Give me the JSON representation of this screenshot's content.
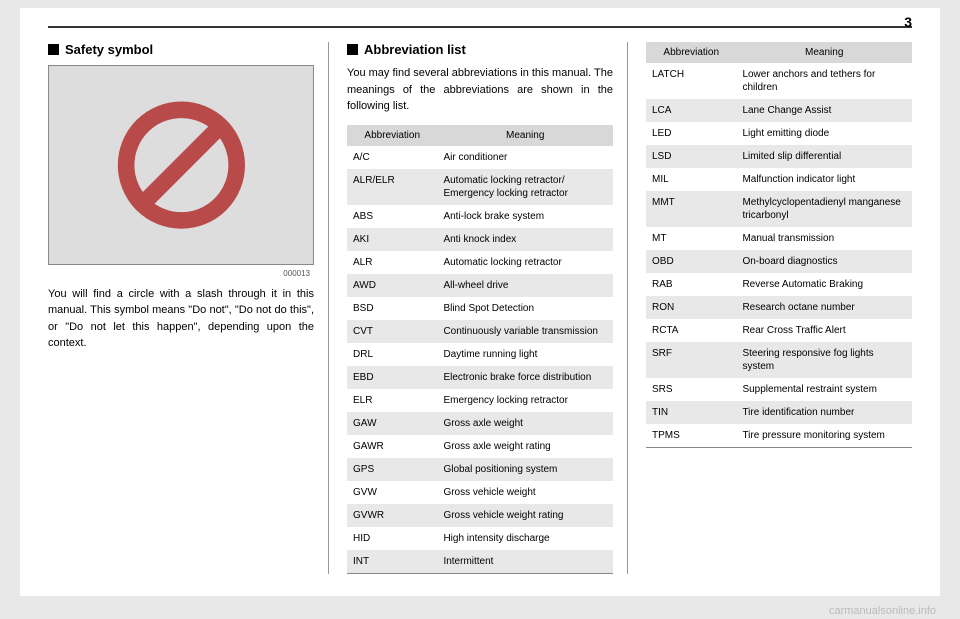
{
  "page_number": "3",
  "watermark": "carmanualsonline.info",
  "col1": {
    "title": "Safety symbol",
    "image_code": "000013",
    "paragraph": "You will find a circle with a slash through it in this manual. This symbol means \"Do not\", \"Do not do this\", or \"Do not let this happen\", depending upon the context.",
    "symbol_color": "#cc4444"
  },
  "col2": {
    "title": "Abbreviation list",
    "intro": "You may find several abbreviations in this manual. The meanings of the abbreviations are shown in the following list.",
    "header_abbr": "Abbreviation",
    "header_meaning": "Meaning",
    "rows": [
      {
        "a": "A/C",
        "m": "Air conditioner"
      },
      {
        "a": "ALR/ELR",
        "m": "Automatic locking retractor/ Emergency locking retractor"
      },
      {
        "a": "ABS",
        "m": "Anti-lock brake system"
      },
      {
        "a": "AKI",
        "m": "Anti knock index"
      },
      {
        "a": "ALR",
        "m": "Automatic locking retractor"
      },
      {
        "a": "AWD",
        "m": "All-wheel drive"
      },
      {
        "a": "BSD",
        "m": "Blind Spot Detection"
      },
      {
        "a": "CVT",
        "m": "Continuously variable transmission"
      },
      {
        "a": "DRL",
        "m": "Daytime running light"
      },
      {
        "a": "EBD",
        "m": "Electronic brake force distribution"
      },
      {
        "a": "ELR",
        "m": "Emergency locking retractor"
      },
      {
        "a": "GAW",
        "m": "Gross axle weight"
      },
      {
        "a": "GAWR",
        "m": "Gross axle weight rating"
      },
      {
        "a": "GPS",
        "m": "Global positioning system"
      },
      {
        "a": "GVW",
        "m": "Gross vehicle weight"
      },
      {
        "a": "GVWR",
        "m": "Gross vehicle weight rating"
      },
      {
        "a": "HID",
        "m": "High intensity discharge"
      },
      {
        "a": "INT",
        "m": "Intermittent"
      }
    ]
  },
  "col3": {
    "header_abbr": "Abbreviation",
    "header_meaning": "Meaning",
    "rows": [
      {
        "a": "LATCH",
        "m": "Lower anchors and tethers for children"
      },
      {
        "a": "LCA",
        "m": "Lane Change Assist"
      },
      {
        "a": "LED",
        "m": "Light emitting diode"
      },
      {
        "a": "LSD",
        "m": "Limited slip differential"
      },
      {
        "a": "MIL",
        "m": "Malfunction indicator light"
      },
      {
        "a": "MMT",
        "m": "Methylcyclopentadienyl manganese tricarbonyl"
      },
      {
        "a": "MT",
        "m": "Manual transmission"
      },
      {
        "a": "OBD",
        "m": "On-board diagnostics"
      },
      {
        "a": "RAB",
        "m": "Reverse Automatic Braking"
      },
      {
        "a": "RON",
        "m": "Research octane number"
      },
      {
        "a": "RCTA",
        "m": "Rear Cross Traffic Alert"
      },
      {
        "a": "SRF",
        "m": "Steering responsive fog lights system"
      },
      {
        "a": "SRS",
        "m": "Supplemental restraint system"
      },
      {
        "a": "TIN",
        "m": "Tire identification number"
      },
      {
        "a": "TPMS",
        "m": "Tire pressure monitoring system"
      }
    ]
  }
}
